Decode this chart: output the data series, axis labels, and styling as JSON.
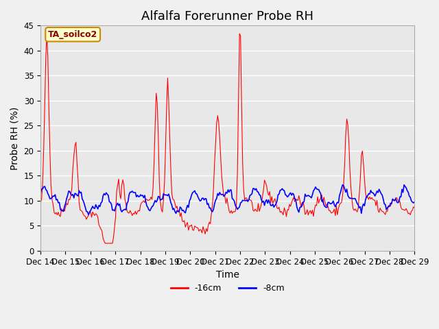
{
  "title": "Alfalfa Forerunner Probe RH",
  "ylabel": "Probe RH (%)",
  "xlabel": "Time",
  "annotation_text": "TA_soilco2",
  "annotation_bg": "#ffffcc",
  "annotation_border": "#cc8800",
  "ylim": [
    0,
    45
  ],
  "yticks": [
    0,
    5,
    10,
    15,
    20,
    25,
    30,
    35,
    40,
    45
  ],
  "line_red_label": "-16cm",
  "line_blue_label": "-8cm",
  "line_red_color": "#ff0000",
  "line_blue_color": "#0000ff",
  "bg_color": "#e8e8e8",
  "plot_bg_color": "#e8e8e8",
  "grid_color": "#ffffff",
  "title_fontsize": 13,
  "axis_fontsize": 10,
  "tick_label_fontsize": 8.5
}
